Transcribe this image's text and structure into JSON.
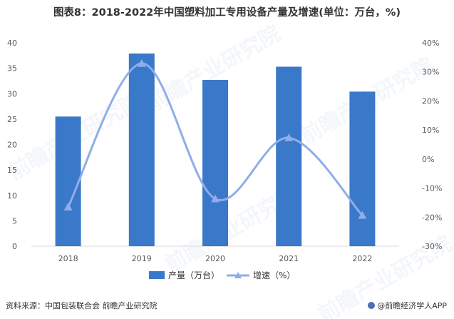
{
  "title": "图表8：2018-2022年中国塑料加工专用设备产量及增速(单位：万台，%)",
  "chart_data": {
    "type": "bar",
    "categories": [
      "2018",
      "2019",
      "2020",
      "2021",
      "2022"
    ],
    "series": [
      {
        "name": "产量（万台）",
        "type": "bar",
        "axis": "left",
        "color": "#3a78c9",
        "values": [
          25.5,
          37.9,
          32.7,
          35.3,
          30.4
        ]
      },
      {
        "name": "增速（%）",
        "type": "line",
        "axis": "right",
        "color": "#8fadea",
        "values": [
          -16.5,
          32.9,
          -13.7,
          7.3,
          -19.4
        ]
      }
    ],
    "left_axis": {
      "min": 0,
      "max": 40,
      "step": 5,
      "ticks": [
        "0",
        "5",
        "10",
        "15",
        "20",
        "25",
        "30",
        "35",
        "40"
      ]
    },
    "right_axis": {
      "min": -30,
      "max": 40,
      "step": 10,
      "ticks": [
        "-30%",
        "-20%",
        "-10%",
        "0%",
        "10%",
        "20%",
        "30%",
        "40%"
      ]
    },
    "legend_position": "bottom",
    "grid": false
  },
  "watermark": "前瞻产业研究院",
  "source": "资料来源：中国包装联合会 前瞻产业研究院",
  "brand": "@前瞻经济学人APP"
}
